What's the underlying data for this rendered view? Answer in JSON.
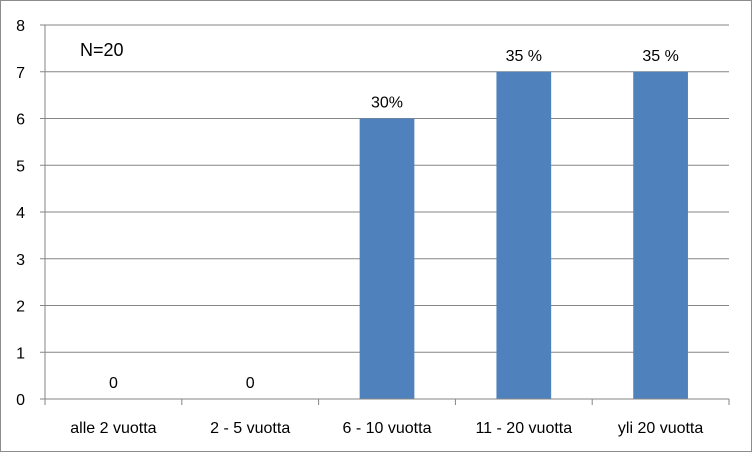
{
  "chart_data": {
    "type": "bar",
    "annotation": "N=20",
    "categories": [
      "alle 2 vuotta",
      "2 - 5 vuotta",
      "6 - 10 vuotta",
      "11 - 20 vuotta",
      "yli 20 vuotta"
    ],
    "values": [
      0,
      0,
      6,
      7,
      7
    ],
    "data_labels": [
      "0",
      "0",
      "30%",
      "35 %",
      "35 %"
    ],
    "yticks": [
      "0",
      "1",
      "2",
      "3",
      "4",
      "5",
      "6",
      "7",
      "8"
    ],
    "ylim": [
      0,
      8
    ],
    "grid": true,
    "legend": "none",
    "bar_color": "#4F81BD",
    "grid_color": "#868686"
  }
}
